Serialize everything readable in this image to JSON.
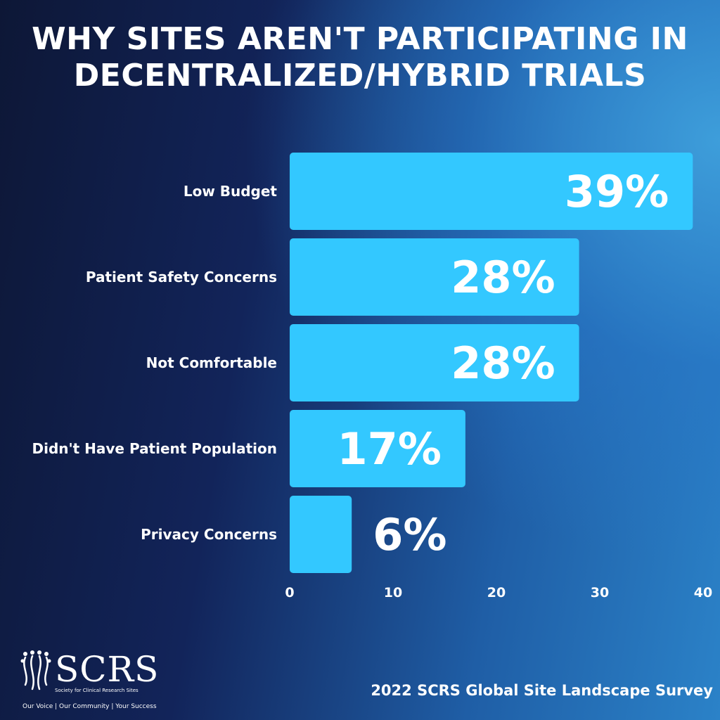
{
  "title_line1": "WHY SITES AREN'T PARTICIPATING IN",
  "title_line2": "DECENTRALIZED/HYBRID TRIALS",
  "chart_data": {
    "type": "bar",
    "orientation": "horizontal",
    "categories": [
      "Low Budget",
      "Patient Safety Concerns",
      "Not Comfortable",
      "Didn't Have Patient Population",
      "Privacy Concerns"
    ],
    "values": [
      39,
      28,
      28,
      17,
      6
    ],
    "value_labels": [
      "39%",
      "28%",
      "28%",
      "17%",
      "6%"
    ],
    "xlim": [
      0,
      40
    ],
    "xticks": [
      0,
      10,
      20,
      30,
      40
    ],
    "grid": false,
    "legend": "none",
    "bar_color": "#33c8ff"
  },
  "logo": {
    "name": "SCRS",
    "subtitle": "Society for Clinical Research Sites",
    "tagline": "Our Voice | Our Community | Your Success"
  },
  "source": "2022 SCRS Global Site Landscape Survey"
}
